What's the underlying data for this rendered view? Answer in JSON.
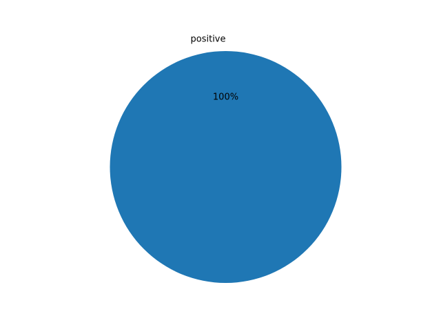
{
  "chart_data": {
    "type": "pie",
    "title": "",
    "slices": [
      {
        "label": "positive",
        "value": 100,
        "percent_label": "100%",
        "color": "#1f77b4"
      }
    ],
    "legend": "none"
  }
}
